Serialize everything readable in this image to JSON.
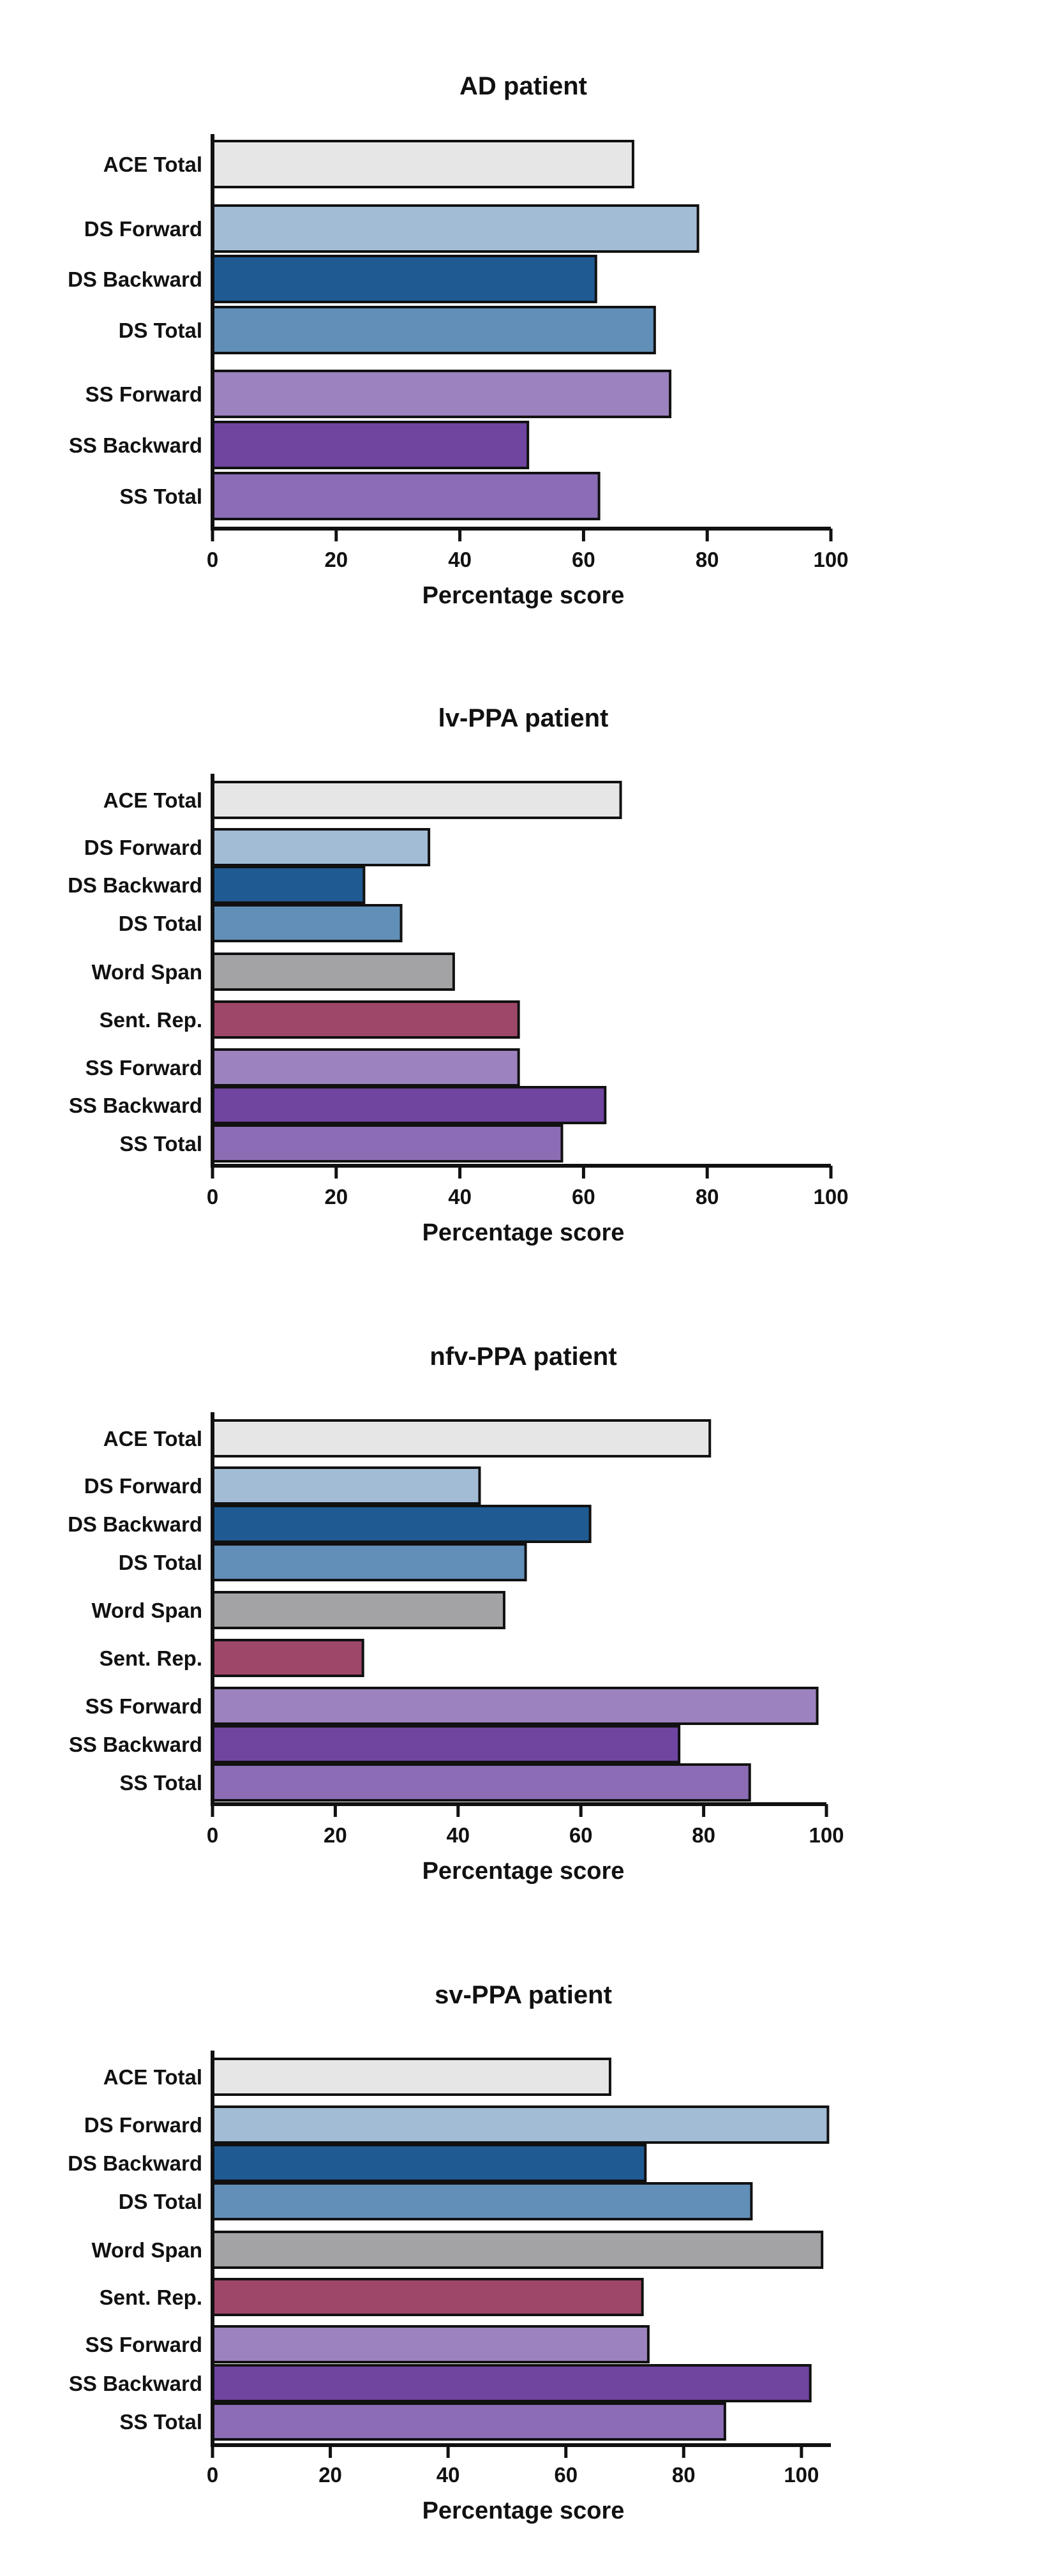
{
  "colors": {
    "ACE Total": "#e6e6e6",
    "DS Forward": "#a3bcd6",
    "DS Backward": "#205a92",
    "DS Total": "#618fb8",
    "Word Span": "#a3a3a6",
    "Sent. Rep.": "#9e4769",
    "SS Forward": "#9c82be",
    "SS Backward": "#6f45a0",
    "SS Total": "#8b6cb5",
    "outline": "#111111"
  },
  "chart_data": [
    {
      "type": "bar",
      "orientation": "horizontal",
      "title": "AD patient",
      "categories": [
        "ACE Total",
        "DS Forward",
        "DS Backward",
        "DS Total",
        "SS Forward",
        "SS Backward",
        "SS Total"
      ],
      "values": [
        68,
        78.5,
        62,
        71.5,
        74,
        51,
        62.5
      ],
      "xlabel": "Percentage score",
      "xlim": [
        0,
        100
      ],
      "xticks": [
        0,
        20,
        40,
        60,
        80,
        100
      ]
    },
    {
      "type": "bar",
      "orientation": "horizontal",
      "title": "lv-PPA patient",
      "categories": [
        "ACE Total",
        "DS Forward",
        "DS Backward",
        "DS Total",
        "Word Span",
        "Sent. Rep.",
        "SS Forward",
        "SS Backward",
        "SS Total"
      ],
      "values": [
        66,
        35,
        24.5,
        30.5,
        39,
        49.5,
        49.5,
        63.5,
        56.5
      ],
      "xlabel": "Percentage score",
      "xlim": [
        0,
        100
      ],
      "xticks": [
        0,
        20,
        40,
        60,
        80,
        100
      ]
    },
    {
      "type": "bar",
      "orientation": "horizontal",
      "title": "nfv-PPA patient",
      "categories": [
        "ACE Total",
        "DS Forward",
        "DS Backward",
        "DS Total",
        "Word Span",
        "Sent. Rep.",
        "SS Forward",
        "SS Backward",
        "SS Total"
      ],
      "values": [
        81,
        43.5,
        61.5,
        51,
        47.5,
        24.5,
        98.5,
        76,
        87.5
      ],
      "xlabel": "Percentage score",
      "xlim": [
        0,
        100
      ],
      "xticks": [
        0,
        20,
        40,
        60,
        80,
        100
      ]
    },
    {
      "type": "bar",
      "orientation": "horizontal",
      "title": "sv-PPA patient",
      "categories": [
        "ACE Total",
        "DS Forward",
        "DS Backward",
        "DS Total",
        "Word Span",
        "Sent. Rep.",
        "SS Forward",
        "SS Backward",
        "SS Total"
      ],
      "values": [
        67.5,
        104.5,
        73.5,
        91.5,
        103.5,
        73,
        74,
        101.5,
        87
      ],
      "xlabel": "Percentage score",
      "xlim": [
        0,
        105
      ],
      "xticks": [
        0,
        20,
        40,
        60,
        80,
        100
      ]
    }
  ]
}
